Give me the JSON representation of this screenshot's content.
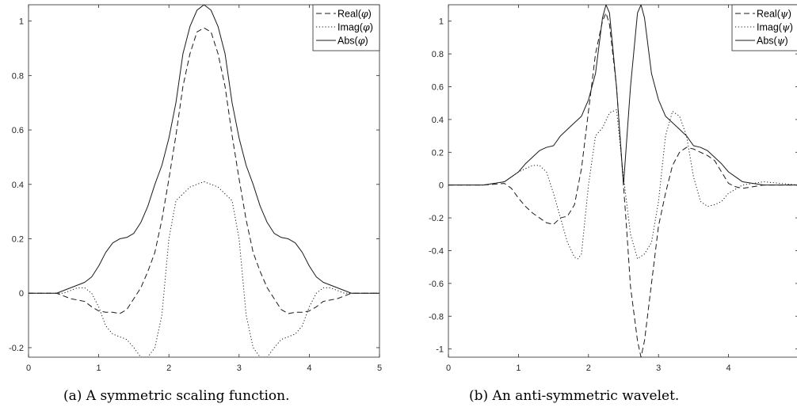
{
  "chart_data": [
    {
      "type": "line",
      "xlim": [
        0,
        5
      ],
      "ylim": [
        -0.235,
        1.06
      ],
      "xticks": [
        0,
        1,
        2,
        3,
        4,
        5
      ],
      "xtick_labels": [
        "0",
        "1",
        "2",
        "3",
        "4",
        "5"
      ],
      "yticks": [
        -0.2,
        0,
        0.2,
        0.4,
        0.6,
        0.8,
        1
      ],
      "ytick_labels": [
        "-0.2",
        "0",
        "0.2",
        "0.4",
        "0.6",
        "0.8",
        "1"
      ],
      "grid": false,
      "legend_position": "top-right",
      "caption": "(a) A symmetric scaling function.",
      "series": [
        {
          "name": "Real(φ)",
          "func": "Real",
          "sym": "φ",
          "style": "dashed",
          "x": [
            0,
            0.4,
            0.6,
            0.8,
            0.9,
            1.0,
            1.1,
            1.2,
            1.3,
            1.4,
            1.5,
            1.6,
            1.7,
            1.8,
            1.9,
            2.0,
            2.1,
            2.2,
            2.3,
            2.4,
            2.5,
            2.6,
            2.7,
            2.8,
            2.9,
            3.0,
            3.1,
            3.2,
            3.3,
            3.4,
            3.5,
            3.6,
            3.7,
            3.8,
            3.9,
            4.0,
            4.1,
            4.2,
            4.4,
            4.6,
            5
          ],
          "y": [
            0,
            0,
            -0.02,
            -0.03,
            -0.05,
            -0.065,
            -0.07,
            -0.07,
            -0.075,
            -0.06,
            -0.02,
            0.02,
            0.08,
            0.15,
            0.27,
            0.42,
            0.58,
            0.76,
            0.88,
            0.96,
            0.975,
            0.96,
            0.88,
            0.76,
            0.58,
            0.42,
            0.27,
            0.15,
            0.08,
            0.02,
            -0.02,
            -0.06,
            -0.075,
            -0.07,
            -0.07,
            -0.065,
            -0.05,
            -0.03,
            -0.02,
            0,
            0
          ]
        },
        {
          "name": "Imag(φ)",
          "func": "Imag",
          "sym": "φ",
          "style": "dotted",
          "x": [
            0,
            0.5,
            0.7,
            0.8,
            0.9,
            1.0,
            1.1,
            1.2,
            1.3,
            1.4,
            1.5,
            1.6,
            1.7,
            1.8,
            1.9,
            2.0,
            2.1,
            2.3,
            2.5,
            2.7,
            2.9,
            3.0,
            3.1,
            3.2,
            3.3,
            3.4,
            3.5,
            3.6,
            3.7,
            3.8,
            3.9,
            4.0,
            4.1,
            4.2,
            4.3,
            4.5,
            5
          ],
          "y": [
            0,
            0,
            0.02,
            0.02,
            0,
            -0.05,
            -0.12,
            -0.15,
            -0.16,
            -0.17,
            -0.2,
            -0.235,
            -0.235,
            -0.2,
            -0.08,
            0.2,
            0.34,
            0.39,
            0.41,
            0.39,
            0.34,
            0.2,
            -0.08,
            -0.2,
            -0.235,
            -0.235,
            -0.2,
            -0.17,
            -0.16,
            -0.15,
            -0.12,
            -0.05,
            0,
            0.02,
            0.02,
            0,
            0
          ]
        },
        {
          "name": "Abs(φ)",
          "func": "Abs",
          "sym": "φ",
          "style": "solid",
          "x": [
            0,
            0.4,
            0.6,
            0.8,
            0.9,
            1.0,
            1.1,
            1.2,
            1.3,
            1.4,
            1.5,
            1.6,
            1.7,
            1.8,
            1.9,
            2.0,
            2.1,
            2.2,
            2.3,
            2.4,
            2.5,
            2.6,
            2.7,
            2.8,
            2.9,
            3.0,
            3.1,
            3.2,
            3.3,
            3.4,
            3.5,
            3.6,
            3.7,
            3.8,
            3.9,
            4.0,
            4.1,
            4.2,
            4.4,
            4.6,
            5
          ],
          "y": [
            0,
            0,
            0.02,
            0.04,
            0.06,
            0.1,
            0.15,
            0.185,
            0.2,
            0.205,
            0.22,
            0.26,
            0.32,
            0.4,
            0.47,
            0.57,
            0.7,
            0.88,
            0.98,
            1.04,
            1.06,
            1.04,
            0.98,
            0.88,
            0.7,
            0.57,
            0.47,
            0.4,
            0.32,
            0.26,
            0.22,
            0.205,
            0.2,
            0.185,
            0.15,
            0.1,
            0.06,
            0.04,
            0.02,
            0,
            0
          ]
        }
      ]
    },
    {
      "type": "line",
      "xlim": [
        0,
        5
      ],
      "ylim": [
        -1.05,
        1.1
      ],
      "xticks": [
        0,
        1,
        2,
        3,
        4
      ],
      "xtick_labels": [
        "0",
        "1",
        "2",
        "3",
        "4"
      ],
      "yticks": [
        -1,
        -0.8,
        -0.6,
        -0.4,
        -0.2,
        0,
        0.2,
        0.4,
        0.6,
        0.8,
        1
      ],
      "ytick_labels": [
        "-1",
        "-0.8",
        "-0.6",
        "-0.4",
        "-0.2",
        "0",
        "0.2",
        "0.4",
        "0.6",
        "0.8",
        "1"
      ],
      "grid": false,
      "legend_position": "top-right",
      "caption": "(b) An anti-symmetric wavelet.",
      "series": [
        {
          "name": "Real(ψ)",
          "func": "Real",
          "sym": "ψ",
          "style": "dashed",
          "x": [
            0,
            0.5,
            0.8,
            0.9,
            1.0,
            1.1,
            1.2,
            1.3,
            1.4,
            1.5,
            1.6,
            1.7,
            1.8,
            1.9,
            2.0,
            2.1,
            2.2,
            2.25,
            2.3,
            2.4,
            2.5,
            2.55,
            2.6,
            2.7,
            2.75,
            2.8,
            2.9,
            3.0,
            3.1,
            3.2,
            3.3,
            3.4,
            3.5,
            3.6,
            3.7,
            3.8,
            3.9,
            4.0,
            4.1,
            4.2,
            4.5,
            5
          ],
          "y": [
            0,
            0,
            0.01,
            -0.02,
            -0.08,
            -0.13,
            -0.17,
            -0.2,
            -0.23,
            -0.24,
            -0.2,
            -0.19,
            -0.12,
            0.1,
            0.45,
            0.8,
            1.0,
            1.05,
            0.98,
            0.6,
            0,
            -0.3,
            -0.62,
            -0.95,
            -1.05,
            -0.95,
            -0.6,
            -0.25,
            -0.05,
            0.12,
            0.2,
            0.23,
            0.22,
            0.2,
            0.18,
            0.15,
            0.08,
            0.01,
            -0.01,
            -0.02,
            0,
            0
          ]
        },
        {
          "name": "Imag(ψ)",
          "func": "Imag",
          "sym": "ψ",
          "style": "dotted",
          "x": [
            0,
            0.5,
            0.8,
            1.0,
            1.1,
            1.2,
            1.3,
            1.4,
            1.5,
            1.6,
            1.7,
            1.8,
            1.85,
            1.9,
            2.0,
            2.1,
            2.2,
            2.3,
            2.4,
            2.5,
            2.6,
            2.7,
            2.8,
            2.9,
            3.0,
            3.1,
            3.2,
            3.3,
            3.4,
            3.5,
            3.6,
            3.7,
            3.8,
            3.9,
            4.0,
            4.2,
            4.5,
            5
          ],
          "y": [
            0,
            0,
            0.02,
            0.08,
            0.1,
            0.12,
            0.12,
            0.08,
            -0.05,
            -0.2,
            -0.35,
            -0.44,
            -0.45,
            -0.42,
            0.0,
            0.3,
            0.35,
            0.44,
            0.46,
            0.05,
            -0.3,
            -0.45,
            -0.42,
            -0.35,
            -0.1,
            0.3,
            0.45,
            0.42,
            0.3,
            0.05,
            -0.1,
            -0.13,
            -0.12,
            -0.1,
            -0.05,
            0,
            0.02,
            0
          ]
        },
        {
          "name": "Abs(ψ)",
          "func": "Abs",
          "sym": "ψ",
          "style": "solid",
          "x": [
            0,
            0.5,
            0.8,
            0.9,
            1.0,
            1.1,
            1.2,
            1.3,
            1.4,
            1.5,
            1.6,
            1.7,
            1.8,
            1.9,
            2.0,
            2.1,
            2.2,
            2.25,
            2.3,
            2.4,
            2.5,
            2.6,
            2.7,
            2.75,
            2.8,
            2.9,
            3.0,
            3.1,
            3.2,
            3.3,
            3.4,
            3.5,
            3.6,
            3.7,
            3.8,
            3.9,
            4.0,
            4.1,
            4.2,
            4.5,
            5
          ],
          "y": [
            0,
            0,
            0.02,
            0.05,
            0.08,
            0.13,
            0.17,
            0.21,
            0.23,
            0.24,
            0.3,
            0.34,
            0.38,
            0.42,
            0.52,
            0.68,
            1.02,
            1.1,
            1.05,
            0.6,
            0.0,
            0.6,
            1.05,
            1.1,
            1.02,
            0.68,
            0.52,
            0.42,
            0.38,
            0.34,
            0.3,
            0.24,
            0.23,
            0.21,
            0.17,
            0.13,
            0.08,
            0.05,
            0.02,
            0,
            0
          ]
        }
      ]
    }
  ]
}
